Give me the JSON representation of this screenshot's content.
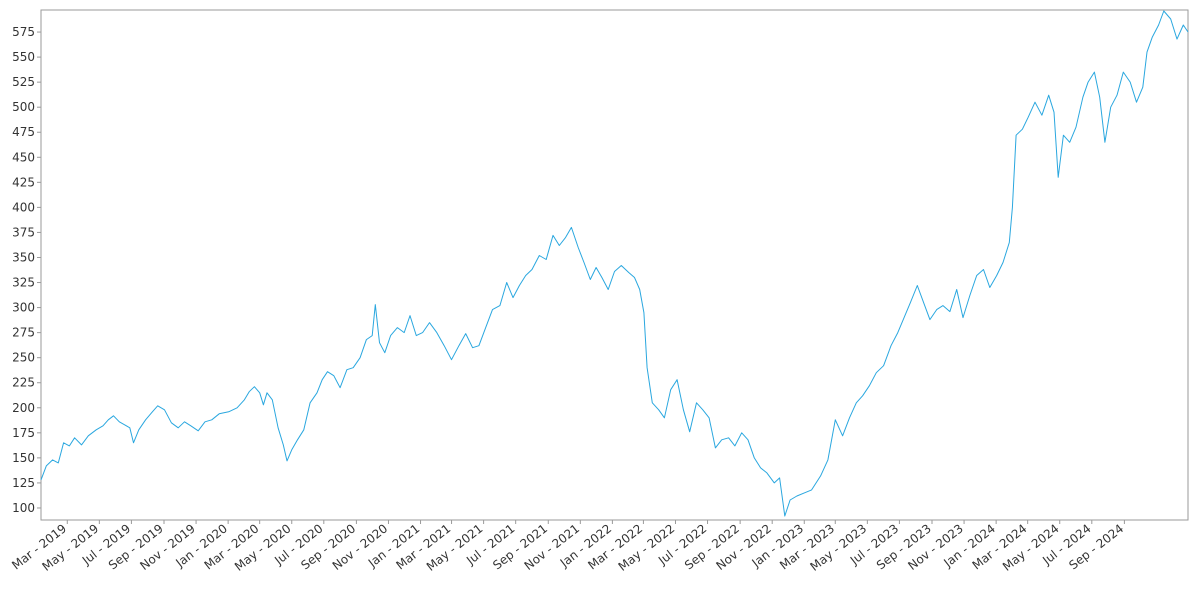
{
  "chart_data": {
    "type": "line",
    "title": "",
    "xlabel": "",
    "ylabel": "",
    "grid": false,
    "legend": "none",
    "x_range": [
      "2019-01-10",
      "2024-12-31"
    ],
    "ylim": [
      88,
      597
    ],
    "y_ticks": [
      100,
      125,
      150,
      175,
      200,
      225,
      250,
      275,
      300,
      325,
      350,
      375,
      400,
      425,
      450,
      475,
      500,
      525,
      550,
      575
    ],
    "x_ticks": [
      {
        "date": "2019-03-01",
        "label": "Mar - 2019"
      },
      {
        "date": "2019-05-01",
        "label": "May - 2019"
      },
      {
        "date": "2019-07-01",
        "label": "Jul - 2019"
      },
      {
        "date": "2019-09-01",
        "label": "Sep - 2019"
      },
      {
        "date": "2019-11-01",
        "label": "Nov - 2019"
      },
      {
        "date": "2020-01-01",
        "label": "Jan - 2020"
      },
      {
        "date": "2020-03-01",
        "label": "Mar - 2020"
      },
      {
        "date": "2020-05-01",
        "label": "May - 2020"
      },
      {
        "date": "2020-07-01",
        "label": "Jul - 2020"
      },
      {
        "date": "2020-09-01",
        "label": "Sep - 2020"
      },
      {
        "date": "2020-11-01",
        "label": "Nov - 2020"
      },
      {
        "date": "2021-01-01",
        "label": "Jan - 2021"
      },
      {
        "date": "2021-03-01",
        "label": "Mar - 2021"
      },
      {
        "date": "2021-05-01",
        "label": "May - 2021"
      },
      {
        "date": "2021-07-01",
        "label": "Jul - 2021"
      },
      {
        "date": "2021-09-01",
        "label": "Sep - 2021"
      },
      {
        "date": "2021-11-01",
        "label": "Nov - 2021"
      },
      {
        "date": "2022-01-01",
        "label": "Jan - 2022"
      },
      {
        "date": "2022-03-01",
        "label": "Mar - 2022"
      },
      {
        "date": "2022-05-01",
        "label": "May - 2022"
      },
      {
        "date": "2022-07-01",
        "label": "Jul - 2022"
      },
      {
        "date": "2022-09-01",
        "label": "Sep - 2022"
      },
      {
        "date": "2022-11-01",
        "label": "Nov - 2022"
      },
      {
        "date": "2023-01-01",
        "label": "Jan - 2023"
      },
      {
        "date": "2023-03-01",
        "label": "Mar - 2023"
      },
      {
        "date": "2023-05-01",
        "label": "May - 2023"
      },
      {
        "date": "2023-07-01",
        "label": "Jul - 2023"
      },
      {
        "date": "2023-09-01",
        "label": "Sep - 2023"
      },
      {
        "date": "2023-11-01",
        "label": "Nov - 2023"
      },
      {
        "date": "2024-01-01",
        "label": "Jan - 2024"
      },
      {
        "date": "2024-03-01",
        "label": "Mar - 2024"
      },
      {
        "date": "2024-05-01",
        "label": "May - 2024"
      },
      {
        "date": "2024-07-01",
        "label": "Jul - 2024"
      },
      {
        "date": "2024-09-01",
        "label": "Sep - 2024"
      }
    ],
    "series": [
      {
        "color": "#2aa7df",
        "points": [
          [
            "2019-01-10",
            128
          ],
          [
            "2019-01-20",
            142
          ],
          [
            "2019-02-01",
            148
          ],
          [
            "2019-02-12",
            145
          ],
          [
            "2019-02-22",
            165
          ],
          [
            "2019-03-05",
            162
          ],
          [
            "2019-03-15",
            170
          ],
          [
            "2019-03-28",
            163
          ],
          [
            "2019-04-10",
            172
          ],
          [
            "2019-04-25",
            178
          ],
          [
            "2019-05-08",
            182
          ],
          [
            "2019-05-18",
            188
          ],
          [
            "2019-05-28",
            192
          ],
          [
            "2019-06-08",
            186
          ],
          [
            "2019-06-18",
            183
          ],
          [
            "2019-06-28",
            180
          ],
          [
            "2019-07-05",
            165
          ],
          [
            "2019-07-15",
            178
          ],
          [
            "2019-07-28",
            188
          ],
          [
            "2019-08-10",
            196
          ],
          [
            "2019-08-20",
            202
          ],
          [
            "2019-09-02",
            198
          ],
          [
            "2019-09-15",
            185
          ],
          [
            "2019-09-28",
            180
          ],
          [
            "2019-10-10",
            186
          ],
          [
            "2019-10-22",
            182
          ],
          [
            "2019-11-05",
            177
          ],
          [
            "2019-11-18",
            186
          ],
          [
            "2019-12-01",
            188
          ],
          [
            "2019-12-15",
            194
          ],
          [
            "2020-01-02",
            196
          ],
          [
            "2020-01-18",
            200
          ],
          [
            "2020-02-01",
            208
          ],
          [
            "2020-02-10",
            216
          ],
          [
            "2020-02-20",
            221
          ],
          [
            "2020-03-01",
            215
          ],
          [
            "2020-03-08",
            203
          ],
          [
            "2020-03-15",
            215
          ],
          [
            "2020-03-25",
            208
          ],
          [
            "2020-04-05",
            180
          ],
          [
            "2020-04-15",
            163
          ],
          [
            "2020-04-22",
            147
          ],
          [
            "2020-05-01",
            158
          ],
          [
            "2020-05-12",
            168
          ],
          [
            "2020-05-24",
            178
          ],
          [
            "2020-06-05",
            205
          ],
          [
            "2020-06-18",
            215
          ],
          [
            "2020-06-28",
            228
          ],
          [
            "2020-07-08",
            236
          ],
          [
            "2020-07-20",
            232
          ],
          [
            "2020-08-01",
            220
          ],
          [
            "2020-08-14",
            238
          ],
          [
            "2020-08-26",
            240
          ],
          [
            "2020-09-08",
            250
          ],
          [
            "2020-09-20",
            268
          ],
          [
            "2020-10-01",
            272
          ],
          [
            "2020-10-07",
            303
          ],
          [
            "2020-10-15",
            265
          ],
          [
            "2020-10-25",
            255
          ],
          [
            "2020-11-05",
            272
          ],
          [
            "2020-11-18",
            280
          ],
          [
            "2020-12-01",
            275
          ],
          [
            "2020-12-12",
            292
          ],
          [
            "2020-12-24",
            272
          ],
          [
            "2021-01-05",
            275
          ],
          [
            "2021-01-18",
            285
          ],
          [
            "2021-02-01",
            275
          ],
          [
            "2021-02-15",
            262
          ],
          [
            "2021-03-01",
            248
          ],
          [
            "2021-03-15",
            262
          ],
          [
            "2021-03-28",
            274
          ],
          [
            "2021-04-10",
            260
          ],
          [
            "2021-04-22",
            262
          ],
          [
            "2021-05-05",
            280
          ],
          [
            "2021-05-18",
            298
          ],
          [
            "2021-06-01",
            302
          ],
          [
            "2021-06-14",
            325
          ],
          [
            "2021-06-26",
            310
          ],
          [
            "2021-07-08",
            322
          ],
          [
            "2021-07-20",
            332
          ],
          [
            "2021-08-01",
            338
          ],
          [
            "2021-08-15",
            352
          ],
          [
            "2021-08-28",
            348
          ],
          [
            "2021-09-10",
            372
          ],
          [
            "2021-09-22",
            362
          ],
          [
            "2021-10-04",
            370
          ],
          [
            "2021-10-15",
            380
          ],
          [
            "2021-10-28",
            360
          ],
          [
            "2021-11-08",
            345
          ],
          [
            "2021-11-20",
            328
          ],
          [
            "2021-12-01",
            340
          ],
          [
            "2021-12-12",
            330
          ],
          [
            "2021-12-24",
            318
          ],
          [
            "2022-01-05",
            336
          ],
          [
            "2022-01-18",
            342
          ],
          [
            "2022-02-01",
            335
          ],
          [
            "2022-02-12",
            330
          ],
          [
            "2022-02-22",
            318
          ],
          [
            "2022-03-02",
            295
          ],
          [
            "2022-03-08",
            240
          ],
          [
            "2022-03-18",
            205
          ],
          [
            "2022-03-30",
            198
          ],
          [
            "2022-04-10",
            190
          ],
          [
            "2022-04-22",
            218
          ],
          [
            "2022-05-04",
            228
          ],
          [
            "2022-05-16",
            198
          ],
          [
            "2022-05-28",
            176
          ],
          [
            "2022-06-10",
            205
          ],
          [
            "2022-06-22",
            198
          ],
          [
            "2022-07-04",
            190
          ],
          [
            "2022-07-16",
            160
          ],
          [
            "2022-07-28",
            168
          ],
          [
            "2022-08-10",
            170
          ],
          [
            "2022-08-22",
            162
          ],
          [
            "2022-09-04",
            175
          ],
          [
            "2022-09-16",
            168
          ],
          [
            "2022-09-28",
            150
          ],
          [
            "2022-10-10",
            140
          ],
          [
            "2022-10-22",
            135
          ],
          [
            "2022-11-05",
            125
          ],
          [
            "2022-11-15",
            130
          ],
          [
            "2022-11-25",
            92
          ],
          [
            "2022-12-05",
            108
          ],
          [
            "2022-12-18",
            112
          ],
          [
            "2023-01-01",
            115
          ],
          [
            "2023-01-15",
            118
          ],
          [
            "2023-02-01",
            132
          ],
          [
            "2023-02-15",
            148
          ],
          [
            "2023-03-01",
            188
          ],
          [
            "2023-03-15",
            172
          ],
          [
            "2023-03-28",
            190
          ],
          [
            "2023-04-10",
            205
          ],
          [
            "2023-04-22",
            212
          ],
          [
            "2023-05-05",
            222
          ],
          [
            "2023-05-18",
            235
          ],
          [
            "2023-06-01",
            242
          ],
          [
            "2023-06-15",
            262
          ],
          [
            "2023-06-28",
            275
          ],
          [
            "2023-07-10",
            290
          ],
          [
            "2023-07-22",
            305
          ],
          [
            "2023-08-04",
            322
          ],
          [
            "2023-08-16",
            305
          ],
          [
            "2023-08-28",
            288
          ],
          [
            "2023-09-10",
            298
          ],
          [
            "2023-09-22",
            302
          ],
          [
            "2023-10-05",
            296
          ],
          [
            "2023-10-18",
            318
          ],
          [
            "2023-10-30",
            290
          ],
          [
            "2023-11-12",
            312
          ],
          [
            "2023-11-25",
            332
          ],
          [
            "2023-12-08",
            338
          ],
          [
            "2023-12-20",
            320
          ],
          [
            "2024-01-02",
            332
          ],
          [
            "2024-01-14",
            345
          ],
          [
            "2024-01-26",
            365
          ],
          [
            "2024-02-01",
            400
          ],
          [
            "2024-02-08",
            472
          ],
          [
            "2024-02-20",
            478
          ],
          [
            "2024-03-02",
            490
          ],
          [
            "2024-03-15",
            505
          ],
          [
            "2024-03-28",
            492
          ],
          [
            "2024-04-10",
            512
          ],
          [
            "2024-04-20",
            495
          ],
          [
            "2024-04-28",
            430
          ],
          [
            "2024-05-08",
            472
          ],
          [
            "2024-05-20",
            465
          ],
          [
            "2024-06-01",
            480
          ],
          [
            "2024-06-14",
            510
          ],
          [
            "2024-06-24",
            525
          ],
          [
            "2024-07-06",
            535
          ],
          [
            "2024-07-16",
            510
          ],
          [
            "2024-07-26",
            465
          ],
          [
            "2024-08-06",
            500
          ],
          [
            "2024-08-18",
            512
          ],
          [
            "2024-08-30",
            535
          ],
          [
            "2024-09-12",
            525
          ],
          [
            "2024-09-24",
            505
          ],
          [
            "2024-10-06",
            520
          ],
          [
            "2024-10-14",
            555
          ],
          [
            "2024-10-24",
            570
          ],
          [
            "2024-11-05",
            582
          ],
          [
            "2024-11-15",
            596
          ],
          [
            "2024-11-28",
            588
          ],
          [
            "2024-12-10",
            568
          ],
          [
            "2024-12-22",
            582
          ],
          [
            "2024-12-31",
            575
          ]
        ]
      }
    ]
  }
}
